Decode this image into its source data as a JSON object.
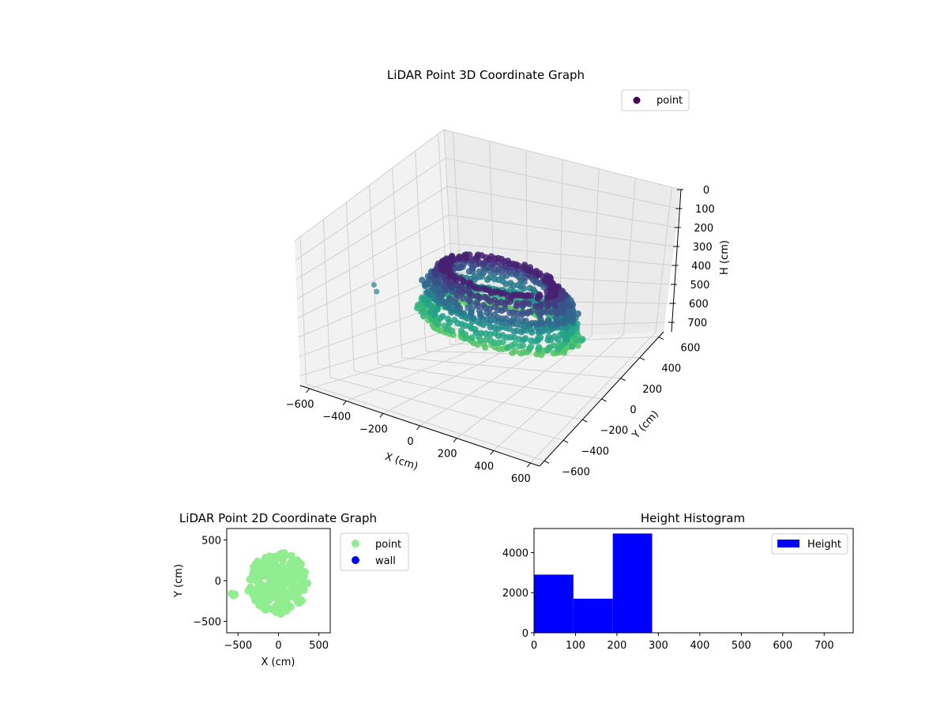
{
  "chart_data": [
    {
      "type": "scatter",
      "title": "LiDAR Point 3D Coordinate Graph",
      "xlabel": "X (cm)",
      "ylabel": "Y (cm)",
      "zlabel": "H (cm)",
      "xlim": [
        -650,
        650
      ],
      "ylim": [
        -650,
        650
      ],
      "zlim": [
        750,
        0
      ],
      "xticks": [
        "−600",
        "−400",
        "−200",
        "0",
        "200",
        "400",
        "600"
      ],
      "yticks": [
        "−600",
        "−400",
        "−200",
        "0",
        "200",
        "400",
        "600"
      ],
      "zticks": [
        "0",
        "100",
        "200",
        "300",
        "400",
        "500",
        "600",
        "700"
      ],
      "grid": true,
      "legend_position": "top-right",
      "series": [
        {
          "name": "point",
          "colormap": "viridis",
          "color_range_h": [
            0,
            700
          ],
          "rings": [
            {
              "h": 40,
              "r": 250
            },
            {
              "h": 75,
              "r": 275
            },
            {
              "h": 110,
              "r": 300
            },
            {
              "h": 145,
              "r": 330
            },
            {
              "h": 180,
              "r": 315
            },
            {
              "h": 215,
              "r": 290
            },
            {
              "h": 250,
              "r": 330
            },
            {
              "h": 285,
              "r": 350
            },
            {
              "h": 320,
              "r": 330
            }
          ],
          "outliers": [
            {
              "x": -560,
              "y": -150,
              "h": 280
            },
            {
              "x": -530,
              "y": -175,
              "h": 300
            }
          ]
        }
      ]
    },
    {
      "type": "scatter",
      "title": "LiDAR Point 2D Coordinate Graph",
      "xlabel": "X (cm)",
      "ylabel": "Y (cm)",
      "xlim": [
        -640,
        640
      ],
      "ylim": [
        -640,
        640
      ],
      "xticks": [
        "−500",
        "0",
        "500"
      ],
      "yticks": [
        "−500",
        "0",
        "500"
      ],
      "legend_position": "outside-right",
      "series": [
        {
          "name": "point",
          "color": "#90ee90",
          "center": [
            0,
            -30
          ],
          "radius": 390,
          "outliers": [
            [
              -580,
              -160
            ],
            [
              -560,
              -180
            ],
            [
              -540,
              -170
            ]
          ]
        },
        {
          "name": "wall",
          "color": "#0000ff"
        }
      ]
    },
    {
      "type": "bar",
      "title": "Height Histogram",
      "xlim": [
        0,
        770
      ],
      "ylim": [
        0,
        5200
      ],
      "xticks": [
        "0",
        "100",
        "200",
        "300",
        "400",
        "500",
        "600",
        "700"
      ],
      "yticks": [
        "0",
        "2000",
        "4000"
      ],
      "legend_position": "top-right",
      "series": [
        {
          "name": "Height",
          "color": "#0000ff",
          "bins": [
            {
              "x0": 0,
              "x1": 95,
              "value": 2900
            },
            {
              "x0": 95,
              "x1": 190,
              "value": 1700
            },
            {
              "x0": 190,
              "x1": 285,
              "value": 4950
            }
          ]
        }
      ]
    }
  ]
}
